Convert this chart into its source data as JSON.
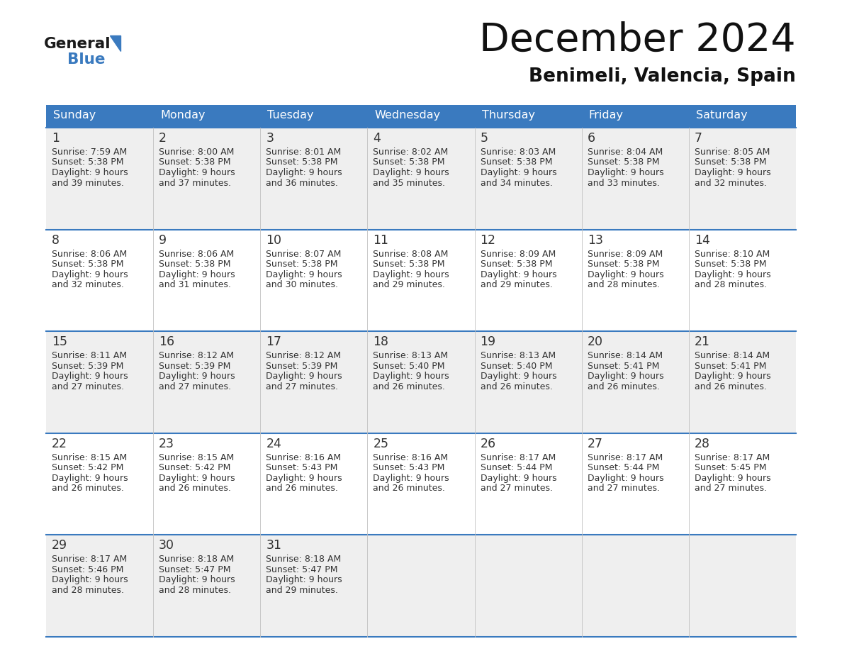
{
  "title": "December 2024",
  "subtitle": "Benimeli, Valencia, Spain",
  "header_color": "#3a7abf",
  "header_text_color": "#ffffff",
  "background_color": "#ffffff",
  "cell_bg_even": "#efefef",
  "cell_bg_odd": "#ffffff",
  "grid_line_color": "#3a7abf",
  "text_color": "#333333",
  "day_headers": [
    "Sunday",
    "Monday",
    "Tuesday",
    "Wednesday",
    "Thursday",
    "Friday",
    "Saturday"
  ],
  "days": [
    {
      "day": 1,
      "col": 0,
      "row": 0,
      "sunrise": "7:59 AM",
      "sunset": "5:38 PM",
      "daylight_h": "9 hours",
      "daylight_m": "39 minutes."
    },
    {
      "day": 2,
      "col": 1,
      "row": 0,
      "sunrise": "8:00 AM",
      "sunset": "5:38 PM",
      "daylight_h": "9 hours",
      "daylight_m": "37 minutes."
    },
    {
      "day": 3,
      "col": 2,
      "row": 0,
      "sunrise": "8:01 AM",
      "sunset": "5:38 PM",
      "daylight_h": "9 hours",
      "daylight_m": "36 minutes."
    },
    {
      "day": 4,
      "col": 3,
      "row": 0,
      "sunrise": "8:02 AM",
      "sunset": "5:38 PM",
      "daylight_h": "9 hours",
      "daylight_m": "35 minutes."
    },
    {
      "day": 5,
      "col": 4,
      "row": 0,
      "sunrise": "8:03 AM",
      "sunset": "5:38 PM",
      "daylight_h": "9 hours",
      "daylight_m": "34 minutes."
    },
    {
      "day": 6,
      "col": 5,
      "row": 0,
      "sunrise": "8:04 AM",
      "sunset": "5:38 PM",
      "daylight_h": "9 hours",
      "daylight_m": "33 minutes."
    },
    {
      "day": 7,
      "col": 6,
      "row": 0,
      "sunrise": "8:05 AM",
      "sunset": "5:38 PM",
      "daylight_h": "9 hours",
      "daylight_m": "32 minutes."
    },
    {
      "day": 8,
      "col": 0,
      "row": 1,
      "sunrise": "8:06 AM",
      "sunset": "5:38 PM",
      "daylight_h": "9 hours",
      "daylight_m": "32 minutes."
    },
    {
      "day": 9,
      "col": 1,
      "row": 1,
      "sunrise": "8:06 AM",
      "sunset": "5:38 PM",
      "daylight_h": "9 hours",
      "daylight_m": "31 minutes."
    },
    {
      "day": 10,
      "col": 2,
      "row": 1,
      "sunrise": "8:07 AM",
      "sunset": "5:38 PM",
      "daylight_h": "9 hours",
      "daylight_m": "30 minutes."
    },
    {
      "day": 11,
      "col": 3,
      "row": 1,
      "sunrise": "8:08 AM",
      "sunset": "5:38 PM",
      "daylight_h": "9 hours",
      "daylight_m": "29 minutes."
    },
    {
      "day": 12,
      "col": 4,
      "row": 1,
      "sunrise": "8:09 AM",
      "sunset": "5:38 PM",
      "daylight_h": "9 hours",
      "daylight_m": "29 minutes."
    },
    {
      "day": 13,
      "col": 5,
      "row": 1,
      "sunrise": "8:09 AM",
      "sunset": "5:38 PM",
      "daylight_h": "9 hours",
      "daylight_m": "28 minutes."
    },
    {
      "day": 14,
      "col": 6,
      "row": 1,
      "sunrise": "8:10 AM",
      "sunset": "5:38 PM",
      "daylight_h": "9 hours",
      "daylight_m": "28 minutes."
    },
    {
      "day": 15,
      "col": 0,
      "row": 2,
      "sunrise": "8:11 AM",
      "sunset": "5:39 PM",
      "daylight_h": "9 hours",
      "daylight_m": "27 minutes."
    },
    {
      "day": 16,
      "col": 1,
      "row": 2,
      "sunrise": "8:12 AM",
      "sunset": "5:39 PM",
      "daylight_h": "9 hours",
      "daylight_m": "27 minutes."
    },
    {
      "day": 17,
      "col": 2,
      "row": 2,
      "sunrise": "8:12 AM",
      "sunset": "5:39 PM",
      "daylight_h": "9 hours",
      "daylight_m": "27 minutes."
    },
    {
      "day": 18,
      "col": 3,
      "row": 2,
      "sunrise": "8:13 AM",
      "sunset": "5:40 PM",
      "daylight_h": "9 hours",
      "daylight_m": "26 minutes."
    },
    {
      "day": 19,
      "col": 4,
      "row": 2,
      "sunrise": "8:13 AM",
      "sunset": "5:40 PM",
      "daylight_h": "9 hours",
      "daylight_m": "26 minutes."
    },
    {
      "day": 20,
      "col": 5,
      "row": 2,
      "sunrise": "8:14 AM",
      "sunset": "5:41 PM",
      "daylight_h": "9 hours",
      "daylight_m": "26 minutes."
    },
    {
      "day": 21,
      "col": 6,
      "row": 2,
      "sunrise": "8:14 AM",
      "sunset": "5:41 PM",
      "daylight_h": "9 hours",
      "daylight_m": "26 minutes."
    },
    {
      "day": 22,
      "col": 0,
      "row": 3,
      "sunrise": "8:15 AM",
      "sunset": "5:42 PM",
      "daylight_h": "9 hours",
      "daylight_m": "26 minutes."
    },
    {
      "day": 23,
      "col": 1,
      "row": 3,
      "sunrise": "8:15 AM",
      "sunset": "5:42 PM",
      "daylight_h": "9 hours",
      "daylight_m": "26 minutes."
    },
    {
      "day": 24,
      "col": 2,
      "row": 3,
      "sunrise": "8:16 AM",
      "sunset": "5:43 PM",
      "daylight_h": "9 hours",
      "daylight_m": "26 minutes."
    },
    {
      "day": 25,
      "col": 3,
      "row": 3,
      "sunrise": "8:16 AM",
      "sunset": "5:43 PM",
      "daylight_h": "9 hours",
      "daylight_m": "26 minutes."
    },
    {
      "day": 26,
      "col": 4,
      "row": 3,
      "sunrise": "8:17 AM",
      "sunset": "5:44 PM",
      "daylight_h": "9 hours",
      "daylight_m": "27 minutes."
    },
    {
      "day": 27,
      "col": 5,
      "row": 3,
      "sunrise": "8:17 AM",
      "sunset": "5:44 PM",
      "daylight_h": "9 hours",
      "daylight_m": "27 minutes."
    },
    {
      "day": 28,
      "col": 6,
      "row": 3,
      "sunrise": "8:17 AM",
      "sunset": "5:45 PM",
      "daylight_h": "9 hours",
      "daylight_m": "27 minutes."
    },
    {
      "day": 29,
      "col": 0,
      "row": 4,
      "sunrise": "8:17 AM",
      "sunset": "5:46 PM",
      "daylight_h": "9 hours",
      "daylight_m": "28 minutes."
    },
    {
      "day": 30,
      "col": 1,
      "row": 4,
      "sunrise": "8:18 AM",
      "sunset": "5:47 PM",
      "daylight_h": "9 hours",
      "daylight_m": "28 minutes."
    },
    {
      "day": 31,
      "col": 2,
      "row": 4,
      "sunrise": "8:18 AM",
      "sunset": "5:47 PM",
      "daylight_h": "9 hours",
      "daylight_m": "29 minutes."
    }
  ],
  "logo_general_color": "#1a1a1a",
  "logo_blue_color": "#3a7abf",
  "logo_triangle_color": "#3a7abf"
}
